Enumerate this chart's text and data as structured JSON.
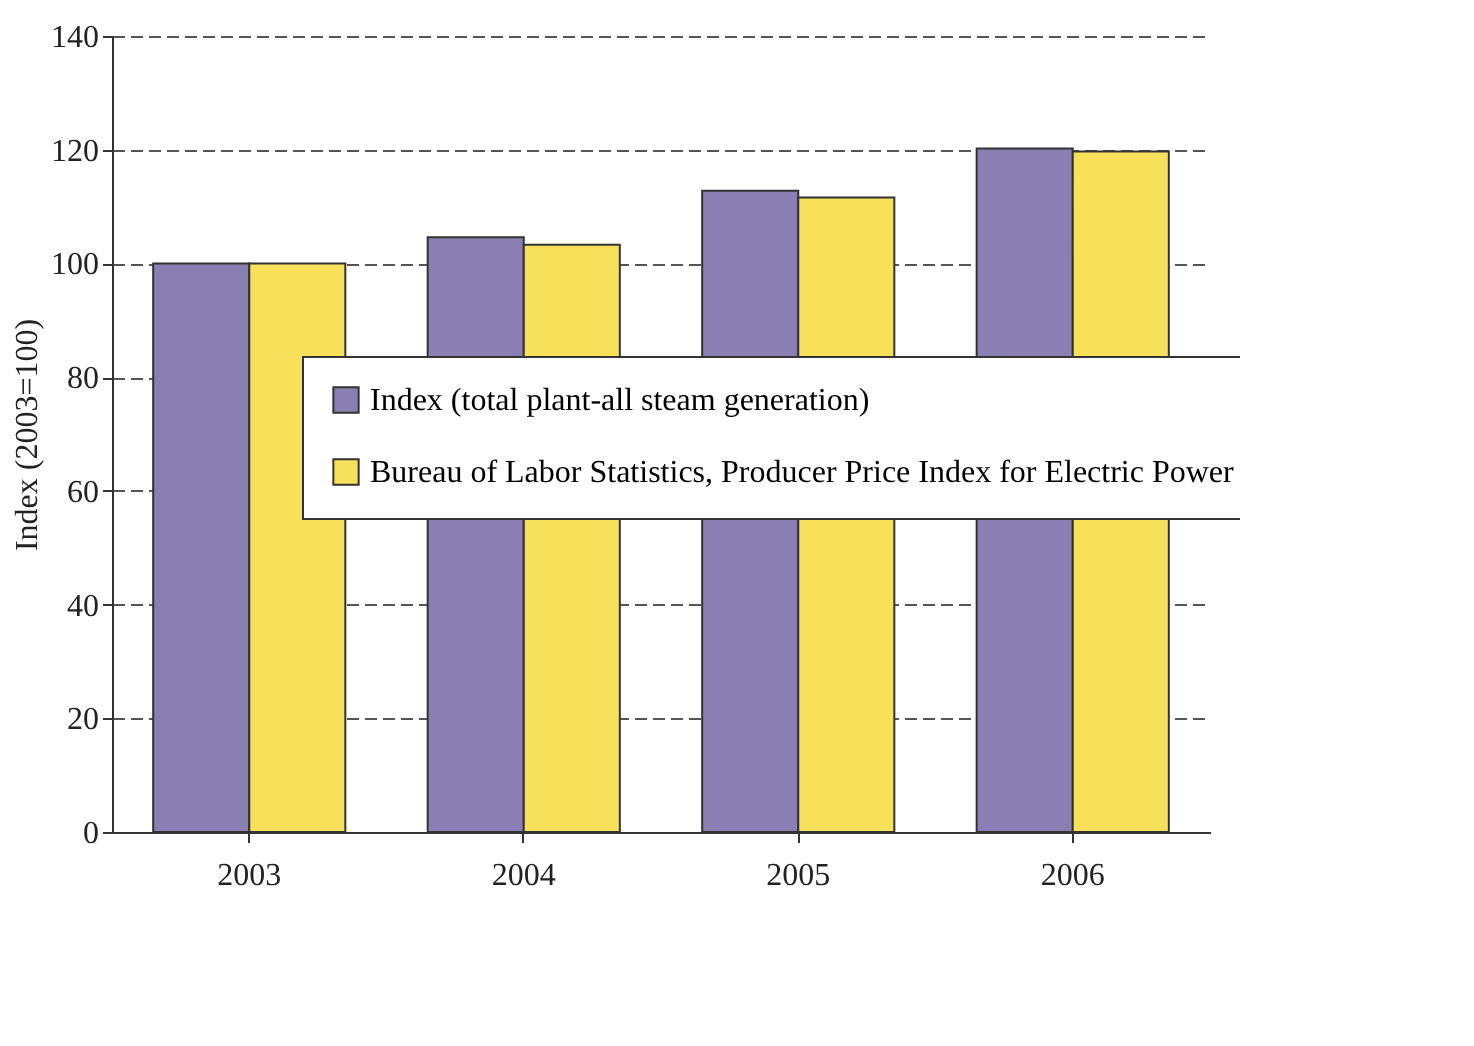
{
  "chart_data": {
    "type": "bar",
    "ylabel": "Index (2003=100)",
    "categories": [
      "2003",
      "2004",
      "2005",
      "2006"
    ],
    "series": [
      {
        "name": "Index (total plant-all steam generation)",
        "color": "#8a7fb2",
        "values": [
          100,
          104.6,
          112.8,
          120.2
        ]
      },
      {
        "name": "Bureau of Labor Statistics, Producer Price Index for Electric Power",
        "color": "#f7e15a",
        "values": [
          100,
          103.3,
          111.6,
          119.7
        ]
      }
    ],
    "ylim": [
      0,
      140
    ],
    "yticks": [
      0,
      20,
      40,
      60,
      80,
      100,
      120,
      140
    ],
    "grid": "y",
    "legend": "center"
  }
}
